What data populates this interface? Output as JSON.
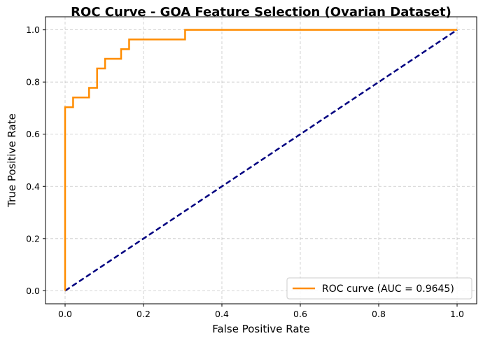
{
  "chart_data": {
    "type": "line",
    "title": "ROC Curve - GOA Feature Selection (Ovarian Dataset)",
    "xlabel": "False Positive Rate",
    "ylabel": "True Positive Rate",
    "xlim": [
      -0.05,
      1.05
    ],
    "ylim": [
      -0.05,
      1.05
    ],
    "xticks": [
      0.0,
      0.2,
      0.4,
      0.6,
      0.8,
      1.0
    ],
    "yticks": [
      0.0,
      0.2,
      0.4,
      0.6,
      0.8,
      1.0
    ],
    "xtick_labels": [
      "0.0",
      "0.2",
      "0.4",
      "0.6",
      "0.8",
      "1.0"
    ],
    "ytick_labels": [
      "0.0",
      "0.2",
      "0.4",
      "0.6",
      "0.8",
      "1.0"
    ],
    "grid": true,
    "legend_position": "lower-right",
    "series": [
      {
        "name": "ROC curve (AUC = 0.9645)",
        "color": "#ff8c00",
        "style": "solid",
        "x": [
          0.0,
          0.0,
          0.0204,
          0.0204,
          0.0612,
          0.0612,
          0.0816,
          0.0816,
          0.102,
          0.102,
          0.1429,
          0.1429,
          0.1633,
          0.1633,
          0.3061,
          0.3061,
          1.0
        ],
        "y": [
          0.0,
          0.7037,
          0.7037,
          0.7407,
          0.7407,
          0.7778,
          0.7778,
          0.8519,
          0.8519,
          0.8889,
          0.8889,
          0.9259,
          0.9259,
          0.963,
          0.963,
          1.0,
          1.0
        ]
      },
      {
        "name": "",
        "color": "#000080",
        "style": "dashed",
        "x": [
          0.0,
          1.0
        ],
        "y": [
          0.0,
          1.0
        ]
      }
    ]
  }
}
